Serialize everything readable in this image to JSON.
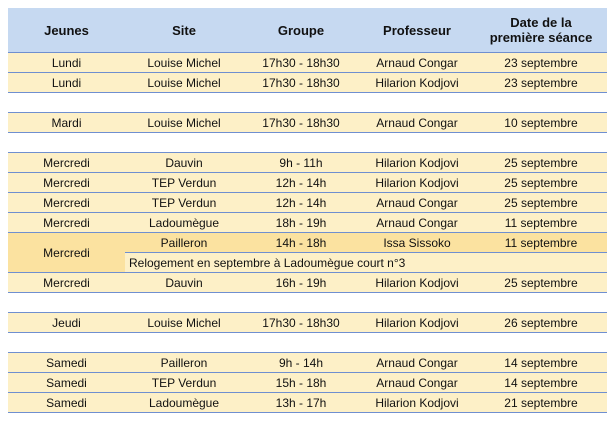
{
  "headers": {
    "jeunes": "Jeunes",
    "site": "Site",
    "groupe": "Groupe",
    "professeur": "Professeur",
    "date_line1": "Date de la",
    "date_line2": "première séance"
  },
  "rows": [
    {
      "day": "Lundi",
      "site": "Louise Michel",
      "groupe": "17h30 - 18h30",
      "prof": "Arnaud Congar",
      "date": "23 septembre"
    },
    {
      "day": "Lundi",
      "site": "Louise Michel",
      "groupe": "17h30 - 18h30",
      "prof": "Hilarion Kodjovi",
      "date": "23 septembre"
    },
    {
      "day": "Mardi",
      "site": "Louise Michel",
      "groupe": "17h30 - 18h30",
      "prof": "Arnaud Congar",
      "date": "10 septembre"
    },
    {
      "day": "Mercredi",
      "site": "Dauvin",
      "groupe": "9h - 11h",
      "prof": "Hilarion Kodjovi",
      "date": "25 septembre"
    },
    {
      "day": "Mercredi",
      "site": "TEP Verdun",
      "groupe": "12h - 14h",
      "prof": "Hilarion Kodjovi",
      "date": "25 septembre"
    },
    {
      "day": "Mercredi",
      "site": "TEP Verdun",
      "groupe": "12h - 14h",
      "prof": "Arnaud Congar",
      "date": "25 septembre"
    },
    {
      "day": "Mercredi",
      "site": "Ladoumègue",
      "groupe": "18h - 19h",
      "prof": "Arnaud Congar",
      "date": "11 septembre"
    },
    {
      "day": "Mercredi",
      "site": "Pailleron",
      "groupe": "14h - 18h",
      "prof": "Issa Sissoko",
      "date": "11 septembre",
      "note": "Relogement en septembre à Ladoumègue court n°3"
    },
    {
      "day": "Mercredi",
      "site": "Dauvin",
      "groupe": "16h - 19h",
      "prof": "Hilarion Kodjovi",
      "date": "25 septembre"
    },
    {
      "day": "Jeudi",
      "site": "Louise Michel",
      "groupe": "17h30 - 18h30",
      "prof": "Hilarion Kodjovi",
      "date": "26 septembre"
    },
    {
      "day": "Samedi",
      "site": "Pailleron",
      "groupe": "9h - 14h",
      "prof": "Arnaud Congar",
      "date": "14 septembre"
    },
    {
      "day": "Samedi",
      "site": "TEP Verdun",
      "groupe": "15h - 18h",
      "prof": "Arnaud Congar",
      "date": "14 septembre"
    },
    {
      "day": "Samedi",
      "site": "Ladoumègue",
      "groupe": "13h - 17h",
      "prof": "Hilarion Kodjovi",
      "date": "21 septembre"
    }
  ],
  "colors": {
    "header_bg": "#c6d9f1",
    "row_bg": "#fdf0c7",
    "highlight_bg": "#fbe2a0",
    "border": "#6f8fd0"
  }
}
